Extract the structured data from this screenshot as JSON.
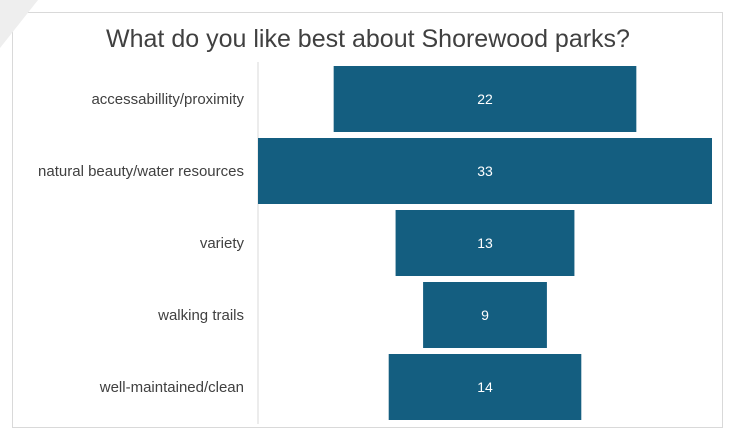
{
  "chart_data": {
    "type": "bar",
    "orientation": "horizontal-funnel",
    "title": "What do you like best about Shorewood parks?",
    "categories": [
      "accessabillity/proximity",
      "natural beauty/water resources",
      "variety",
      "walking trails",
      "well-maintained/clean"
    ],
    "values": [
      22,
      33,
      13,
      9,
      14
    ],
    "bar_color": "#145e80",
    "label_color": "#ffffff",
    "grid": false,
    "legend": "none"
  }
}
